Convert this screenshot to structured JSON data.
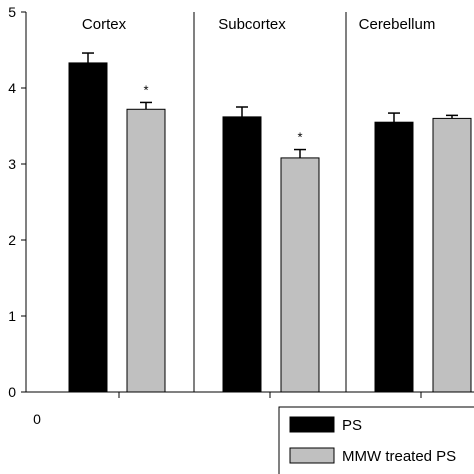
{
  "chart_data": {
    "type": "bar",
    "title": "",
    "xlabel": "",
    "ylabel": "",
    "ylim": [
      0,
      5
    ],
    "yticks": [
      "0",
      "1",
      "2",
      "3",
      "4",
      "5"
    ],
    "x_origin_label": "0",
    "categories": [
      "Cortex",
      "Subcortex",
      "Cerebellum"
    ],
    "series": [
      {
        "name": "PS",
        "color": "#000000",
        "values": [
          4.33,
          3.62,
          3.55
        ],
        "errors": [
          0.13,
          0.13,
          0.12
        ]
      },
      {
        "name": "MMW treated PS",
        "color": "#c0c0c0",
        "values": [
          3.72,
          3.08,
          3.6
        ],
        "errors": [
          0.09,
          0.11,
          0.04
        ]
      }
    ],
    "significance_markers": [
      {
        "category": "Cortex",
        "series": "MMW treated PS",
        "label": "*"
      },
      {
        "category": "Subcortex",
        "series": "MMW treated PS",
        "label": "*"
      }
    ],
    "grid": false,
    "legend_position": "bottom-right"
  }
}
